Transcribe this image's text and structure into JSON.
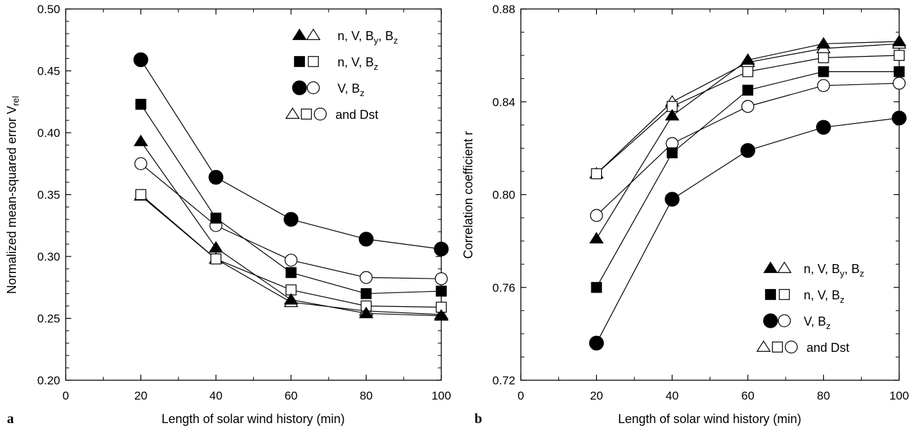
{
  "chart_data": [
    {
      "type": "line",
      "panel_label": "a",
      "xlabel": "Length of solar wind history (min)",
      "ylabel": "Normalized mean-squared error V",
      "ylabel_sub": "rel",
      "xlim": [
        0,
        100
      ],
      "ylim": [
        0.2,
        0.5
      ],
      "x_ticks": [
        "0",
        "20",
        "40",
        "60",
        "80",
        "100"
      ],
      "y_ticks": [
        "0.20",
        "0.25",
        "0.30",
        "0.35",
        "0.40",
        "0.45",
        "0.50"
      ],
      "x": [
        20,
        40,
        60,
        80,
        100
      ],
      "series": [
        {
          "marker": "triangle",
          "filled": true,
          "values": [
            0.393,
            0.307,
            0.265,
            0.254,
            0.252
          ]
        },
        {
          "marker": "square",
          "filled": true,
          "values": [
            0.423,
            0.331,
            0.287,
            0.27,
            0.272
          ]
        },
        {
          "marker": "circle",
          "filled": true,
          "values": [
            0.459,
            0.364,
            0.33,
            0.314,
            0.306
          ]
        },
        {
          "marker": "triangle",
          "filled": false,
          "values": [
            0.349,
            0.298,
            0.263,
            0.256,
            0.253
          ]
        },
        {
          "marker": "square",
          "filled": false,
          "values": [
            0.35,
            0.298,
            0.273,
            0.26,
            0.259
          ]
        },
        {
          "marker": "circle",
          "filled": false,
          "values": [
            0.375,
            0.325,
            0.297,
            0.283,
            0.282
          ]
        }
      ],
      "legend": [
        {
          "markers": [
            "triangle-filled",
            "triangle-open"
          ],
          "text": "n, V, B",
          "sub1": "y",
          "mid": ", B",
          "sub2": "z"
        },
        {
          "markers": [
            "square-filled",
            "square-open"
          ],
          "text": "n, V, B",
          "sub1": "z",
          "mid": "",
          "sub2": ""
        },
        {
          "markers": [
            "circle-filled",
            "circle-open"
          ],
          "text": "V, B",
          "sub1": "z",
          "mid": "",
          "sub2": ""
        },
        {
          "markers": [
            "triangle-open",
            "square-open",
            "circle-open"
          ],
          "text": "and Dst",
          "sub1": "",
          "mid": "",
          "sub2": ""
        }
      ]
    },
    {
      "type": "line",
      "panel_label": "b",
      "xlabel": "Length of solar wind history (min)",
      "ylabel": "Correlation  coefficient r",
      "ylabel_sub": "",
      "xlim": [
        0,
        100
      ],
      "ylim": [
        0.72,
        0.88
      ],
      "x_ticks": [
        "0",
        "20",
        "40",
        "60",
        "80",
        "100"
      ],
      "y_ticks": [
        "0.72",
        "0.76",
        "0.80",
        "0.84",
        "0.88"
      ],
      "x": [
        20,
        40,
        60,
        80,
        100
      ],
      "series": [
        {
          "marker": "triangle",
          "filled": true,
          "values": [
            0.781,
            0.834,
            0.858,
            0.865,
            0.866
          ]
        },
        {
          "marker": "square",
          "filled": true,
          "values": [
            0.76,
            0.818,
            0.845,
            0.853,
            0.853
          ]
        },
        {
          "marker": "circle",
          "filled": true,
          "values": [
            0.736,
            0.798,
            0.819,
            0.829,
            0.833
          ]
        },
        {
          "marker": "triangle",
          "filled": false,
          "values": [
            0.809,
            0.84,
            0.857,
            0.863,
            0.865
          ]
        },
        {
          "marker": "square",
          "filled": false,
          "values": [
            0.809,
            0.838,
            0.853,
            0.859,
            0.86
          ]
        },
        {
          "marker": "circle",
          "filled": false,
          "values": [
            0.791,
            0.822,
            0.838,
            0.847,
            0.848
          ]
        }
      ],
      "legend": [
        {
          "markers": [
            "triangle-filled",
            "triangle-open"
          ],
          "text": "n, V, B",
          "sub1": "y",
          "mid": ", B",
          "sub2": "z"
        },
        {
          "markers": [
            "square-filled",
            "square-open"
          ],
          "text": "n, V, B",
          "sub1": "z",
          "mid": "",
          "sub2": ""
        },
        {
          "markers": [
            "circle-filled",
            "circle-open"
          ],
          "text": "V, B",
          "sub1": "z",
          "mid": "",
          "sub2": ""
        },
        {
          "markers": [
            "triangle-open",
            "square-open",
            "circle-open"
          ],
          "text": "and Dst",
          "sub1": "",
          "mid": "",
          "sub2": ""
        }
      ]
    }
  ]
}
